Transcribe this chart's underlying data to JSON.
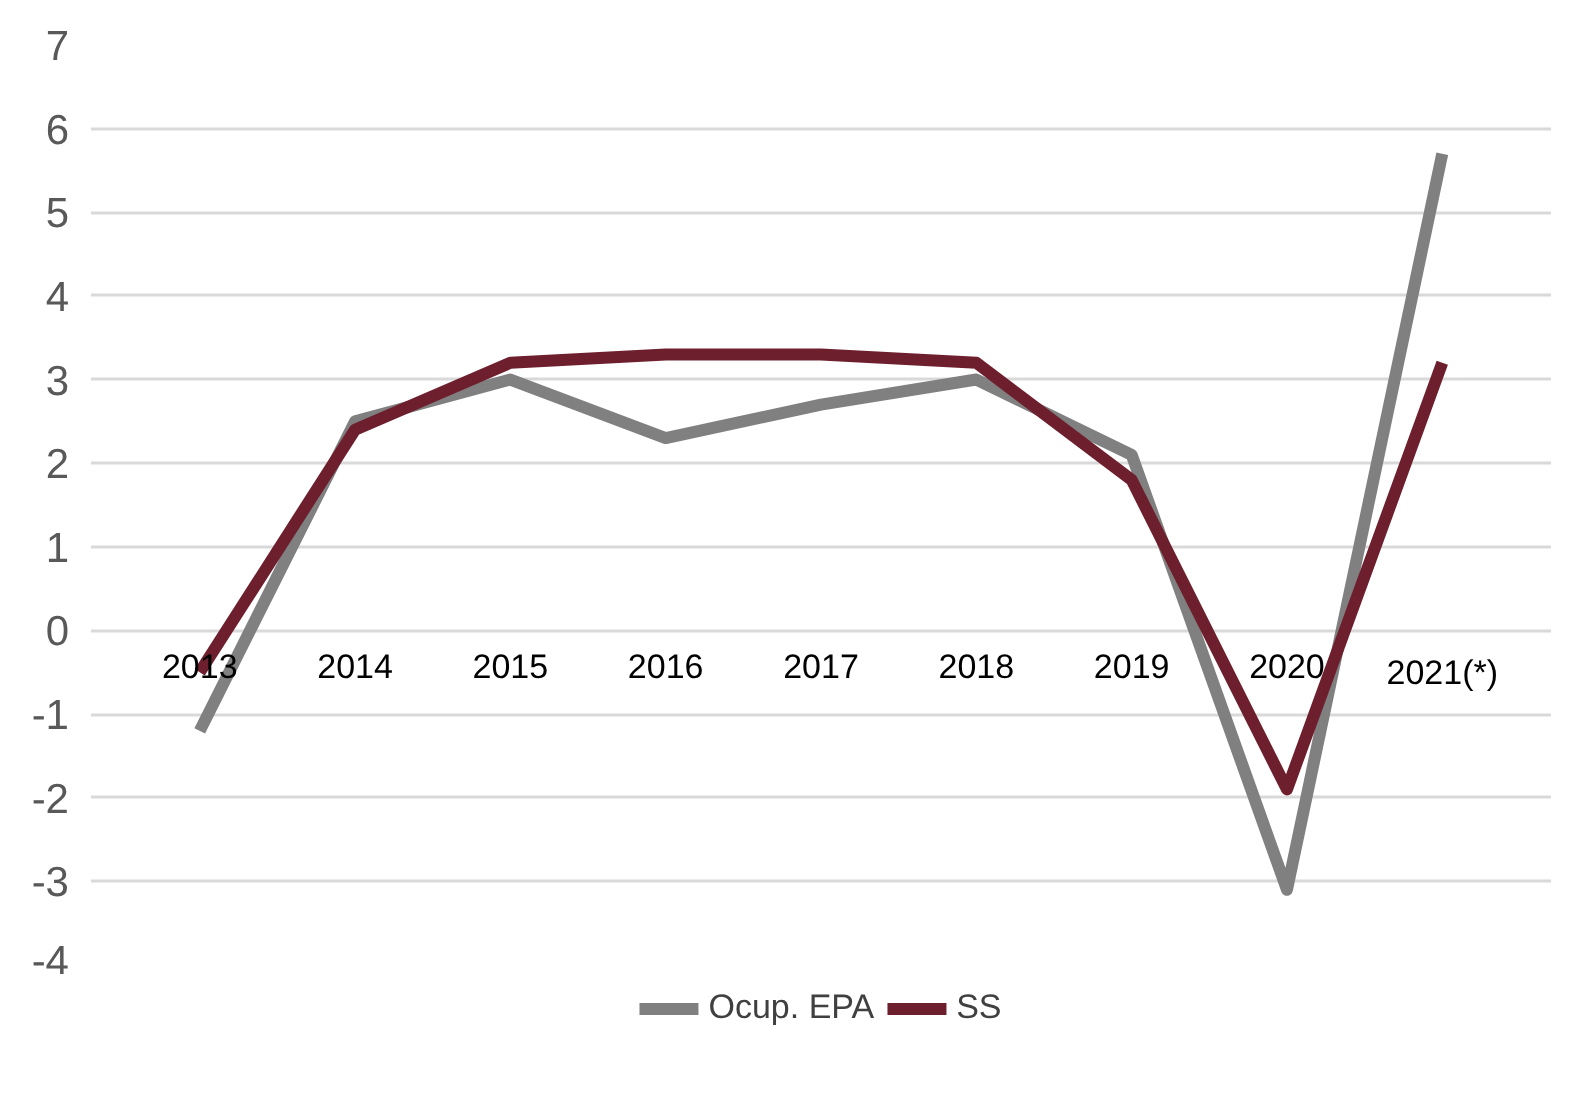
{
  "chart_data": {
    "type": "line",
    "categories": [
      "2013",
      "2014",
      "2015",
      "2016",
      "2017",
      "2018",
      "2019",
      "2020",
      "2021(*)"
    ],
    "series": [
      {
        "name": "Ocup. EPA",
        "color": "#808080",
        "values": [
          -1.2,
          2.5,
          3.0,
          2.3,
          2.7,
          3.0,
          2.1,
          -3.1,
          5.7
        ]
      },
      {
        "name": "SS",
        "color": "#6e1f2e",
        "values": [
          -0.5,
          2.4,
          3.2,
          3.3,
          3.3,
          3.2,
          1.8,
          -1.9,
          3.2
        ]
      }
    ],
    "ylim": [
      -4,
      7
    ],
    "yticks": [
      -4,
      -3,
      -2,
      -1,
      0,
      1,
      2,
      3,
      4,
      5,
      6,
      7
    ],
    "grid": "y",
    "legend": "bottom",
    "marker": "none",
    "line_style": "solid"
  }
}
